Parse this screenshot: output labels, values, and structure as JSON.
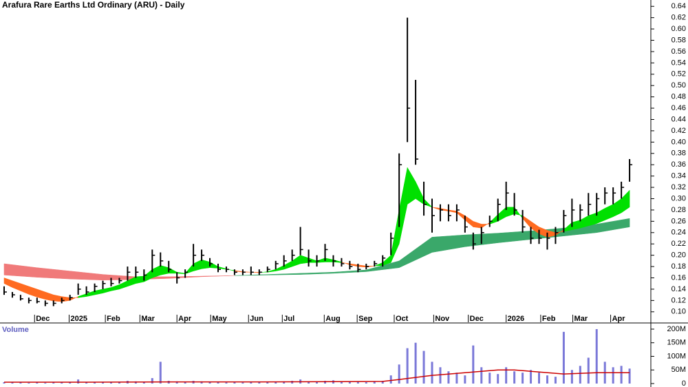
{
  "chart_data": {
    "type": "ohlc",
    "title": "Arafura Rare Earths Ltd Ordinary (ARU) - Daily",
    "color": "#000000",
    "x": [
      0,
      1,
      2,
      3,
      4,
      5,
      6,
      7,
      8,
      9,
      10,
      11,
      12,
      13,
      14,
      15,
      16,
      17,
      18,
      19,
      20,
      21,
      22,
      23,
      24,
      25,
      26,
      27,
      28,
      29,
      30,
      31,
      32,
      33,
      34,
      35,
      36,
      37,
      38,
      39,
      40,
      41,
      42,
      43,
      44,
      45,
      46,
      47,
      48,
      49,
      50,
      51,
      52,
      53,
      54,
      55,
      56,
      57,
      58,
      59,
      60,
      61,
      62,
      63,
      64,
      65,
      66,
      67,
      68,
      69,
      70,
      71,
      72,
      73,
      74,
      75,
      76
    ],
    "high": [
      0.145,
      0.135,
      0.13,
      0.125,
      0.125,
      0.12,
      0.12,
      0.125,
      0.13,
      0.15,
      0.145,
      0.15,
      0.155,
      0.16,
      0.16,
      0.18,
      0.18,
      0.175,
      0.21,
      0.205,
      0.19,
      0.17,
      0.175,
      0.22,
      0.21,
      0.195,
      0.185,
      0.18,
      0.175,
      0.175,
      0.18,
      0.175,
      0.18,
      0.19,
      0.2,
      0.21,
      0.25,
      0.21,
      0.2,
      0.22,
      0.2,
      0.195,
      0.19,
      0.185,
      0.185,
      0.19,
      0.2,
      0.24,
      0.38,
      0.62,
      0.51,
      0.33,
      0.3,
      0.29,
      0.29,
      0.29,
      0.27,
      0.24,
      0.25,
      0.27,
      0.3,
      0.33,
      0.31,
      0.28,
      0.25,
      0.245,
      0.24,
      0.25,
      0.28,
      0.3,
      0.29,
      0.31,
      0.31,
      0.32,
      0.32,
      0.33,
      0.37
    ],
    "low": [
      0.13,
      0.125,
      0.12,
      0.115,
      0.115,
      0.11,
      0.11,
      0.115,
      0.12,
      0.13,
      0.13,
      0.135,
      0.14,
      0.145,
      0.15,
      0.155,
      0.16,
      0.155,
      0.17,
      0.18,
      0.17,
      0.15,
      0.16,
      0.18,
      0.19,
      0.18,
      0.17,
      0.17,
      0.165,
      0.165,
      0.165,
      0.165,
      0.17,
      0.175,
      0.18,
      0.19,
      0.2,
      0.18,
      0.18,
      0.19,
      0.18,
      0.18,
      0.175,
      0.17,
      0.175,
      0.18,
      0.18,
      0.2,
      0.25,
      0.4,
      0.36,
      0.27,
      0.24,
      0.26,
      0.26,
      0.26,
      0.24,
      0.21,
      0.22,
      0.25,
      0.26,
      0.28,
      0.27,
      0.24,
      0.22,
      0.22,
      0.21,
      0.22,
      0.24,
      0.25,
      0.26,
      0.27,
      0.27,
      0.29,
      0.29,
      0.3,
      0.33
    ],
    "close": [
      0.135,
      0.13,
      0.123,
      0.12,
      0.118,
      0.115,
      0.115,
      0.12,
      0.125,
      0.14,
      0.135,
      0.145,
      0.15,
      0.15,
      0.155,
      0.17,
      0.17,
      0.165,
      0.2,
      0.19,
      0.175,
      0.16,
      0.17,
      0.2,
      0.2,
      0.185,
      0.175,
      0.175,
      0.17,
      0.17,
      0.17,
      0.17,
      0.175,
      0.185,
      0.19,
      0.2,
      0.21,
      0.19,
      0.19,
      0.21,
      0.19,
      0.185,
      0.18,
      0.175,
      0.18,
      0.185,
      0.195,
      0.23,
      0.36,
      0.46,
      0.37,
      0.29,
      0.27,
      0.28,
      0.27,
      0.28,
      0.25,
      0.22,
      0.24,
      0.26,
      0.29,
      0.31,
      0.28,
      0.25,
      0.23,
      0.23,
      0.23,
      0.24,
      0.27,
      0.28,
      0.28,
      0.29,
      0.3,
      0.31,
      0.31,
      0.32,
      0.36
    ],
    "xlim": [
      -0.5,
      78.5
    ],
    "xticks": [
      {
        "value": 3.7,
        "label": "Dec"
      },
      {
        "value": 7.9,
        "label": "2025"
      },
      {
        "value": 12.3,
        "label": "Feb"
      },
      {
        "value": 16.5,
        "label": "Mar"
      },
      {
        "value": 21,
        "label": "Apr"
      },
      {
        "value": 25.1,
        "label": "May"
      },
      {
        "value": 29.7,
        "label": "Jun"
      },
      {
        "value": 33.8,
        "label": "Jul"
      },
      {
        "value": 38.9,
        "label": "Aug"
      },
      {
        "value": 42.9,
        "label": "Sep"
      },
      {
        "value": 47.4,
        "label": "Oct"
      },
      {
        "value": 52.2,
        "label": "Nov"
      },
      {
        "value": 56.4,
        "label": "Dec"
      },
      {
        "value": 61,
        "label": "2026"
      },
      {
        "value": 65.2,
        "label": "Feb"
      },
      {
        "value": 69.1,
        "label": "Mar"
      },
      {
        "value": 73.7,
        "label": "Apr"
      }
    ],
    "ylim": [
      0.09,
      0.65
    ],
    "yticks": [
      {
        "value": 0.1,
        "label": "0.10"
      },
      {
        "value": 0.12,
        "label": "0.12"
      },
      {
        "value": 0.14,
        "label": "0.14"
      },
      {
        "value": 0.16,
        "label": "0.16"
      },
      {
        "value": 0.18,
        "label": "0.18"
      },
      {
        "value": 0.2,
        "label": "0.20"
      },
      {
        "value": 0.22,
        "label": "0.22"
      },
      {
        "value": 0.24,
        "label": "0.24"
      },
      {
        "value": 0.26,
        "label": "0.26"
      },
      {
        "value": 0.28,
        "label": "0.28"
      },
      {
        "value": 0.3,
        "label": "0.30"
      },
      {
        "value": 0.32,
        "label": "0.32"
      },
      {
        "value": 0.34,
        "label": "0.34"
      },
      {
        "value": 0.36,
        "label": "0.36"
      },
      {
        "value": 0.38,
        "label": "0.38"
      },
      {
        "value": 0.4,
        "label": "0.40"
      },
      {
        "value": 0.42,
        "label": "0.42"
      },
      {
        "value": 0.44,
        "label": "0.44"
      },
      {
        "value": 0.46,
        "label": "0.46"
      },
      {
        "value": 0.48,
        "label": "0.48"
      },
      {
        "value": 0.5,
        "label": "0.50"
      },
      {
        "value": 0.52,
        "label": "0.52"
      },
      {
        "value": 0.54,
        "label": "0.54"
      },
      {
        "value": 0.56,
        "label": "0.56"
      },
      {
        "value": 0.58,
        "label": "0.58"
      },
      {
        "value": 0.6,
        "label": "0.60"
      },
      {
        "value": 0.62,
        "label": "0.62"
      },
      {
        "value": 0.64,
        "label": "0.64"
      }
    ],
    "bands": [
      {
        "x": [
          0,
          4,
          8,
          12,
          16,
          20,
          24,
          28,
          32,
          36,
          40,
          44,
          48,
          52,
          56,
          60,
          64,
          68,
          72,
          76
        ],
        "fast": [
          0.165,
          0.161,
          0.158,
          0.156,
          0.157,
          0.159,
          0.162,
          0.164,
          0.166,
          0.168,
          0.17,
          0.174,
          0.19,
          0.232,
          0.236,
          0.239,
          0.243,
          0.248,
          0.255,
          0.265
        ],
        "slow": [
          0.185,
          0.178,
          0.172,
          0.166,
          0.162,
          0.162,
          0.163,
          0.164,
          0.165,
          0.166,
          0.168,
          0.171,
          0.178,
          0.205,
          0.215,
          0.222,
          0.228,
          0.234,
          0.24,
          0.25
        ],
        "up_color": "#3aa86a",
        "down_color": "#f07a7a"
      },
      {
        "x": [
          0,
          1,
          2,
          3,
          4,
          5,
          6,
          7,
          8,
          9,
          10,
          11,
          12,
          13,
          14,
          15,
          16,
          17,
          18,
          19,
          20,
          21,
          22,
          23,
          24,
          25,
          26,
          27,
          28,
          29,
          30,
          31,
          32,
          33,
          34,
          35,
          36,
          37,
          38,
          39,
          40,
          41,
          42,
          43,
          44,
          45,
          46,
          47,
          48,
          49,
          50,
          51,
          52,
          53,
          54,
          55,
          56,
          57,
          58,
          59,
          60,
          61,
          62,
          63,
          64,
          65,
          66,
          67,
          68,
          69,
          70,
          71,
          72,
          73,
          74,
          75,
          76
        ],
        "fast": [
          0.15,
          0.143,
          0.137,
          0.131,
          0.126,
          0.122,
          0.119,
          0.118,
          0.12,
          0.127,
          0.132,
          0.137,
          0.14,
          0.143,
          0.148,
          0.155,
          0.162,
          0.163,
          0.175,
          0.182,
          0.178,
          0.17,
          0.168,
          0.185,
          0.192,
          0.188,
          0.18,
          0.176,
          0.172,
          0.17,
          0.17,
          0.169,
          0.171,
          0.175,
          0.182,
          0.19,
          0.2,
          0.195,
          0.19,
          0.195,
          0.192,
          0.188,
          0.183,
          0.18,
          0.179,
          0.181,
          0.187,
          0.2,
          0.28,
          0.355,
          0.33,
          0.3,
          0.285,
          0.28,
          0.278,
          0.275,
          0.262,
          0.25,
          0.248,
          0.258,
          0.272,
          0.285,
          0.285,
          0.265,
          0.248,
          0.238,
          0.232,
          0.235,
          0.245,
          0.258,
          0.262,
          0.27,
          0.275,
          0.283,
          0.29,
          0.3,
          0.315
        ],
        "slow": [
          0.16,
          0.155,
          0.15,
          0.145,
          0.14,
          0.135,
          0.13,
          0.127,
          0.125,
          0.125,
          0.127,
          0.13,
          0.133,
          0.137,
          0.14,
          0.145,
          0.15,
          0.153,
          0.16,
          0.165,
          0.168,
          0.168,
          0.167,
          0.172,
          0.176,
          0.178,
          0.177,
          0.175,
          0.173,
          0.171,
          0.17,
          0.17,
          0.17,
          0.172,
          0.175,
          0.18,
          0.185,
          0.187,
          0.187,
          0.188,
          0.188,
          0.187,
          0.185,
          0.183,
          0.181,
          0.181,
          0.182,
          0.187,
          0.22,
          0.29,
          0.3,
          0.29,
          0.285,
          0.283,
          0.28,
          0.278,
          0.27,
          0.26,
          0.255,
          0.255,
          0.26,
          0.268,
          0.273,
          0.27,
          0.26,
          0.25,
          0.244,
          0.24,
          0.242,
          0.245,
          0.248,
          0.252,
          0.256,
          0.262,
          0.268,
          0.275,
          0.285
        ],
        "up_color": "#00e000",
        "down_color": "#ff6a20"
      }
    ],
    "volume": {
      "label": "Volume",
      "color": "#7a78d8",
      "values": [
        5,
        4,
        4,
        3,
        4,
        3,
        5,
        4,
        6,
        15,
        5,
        6,
        5,
        6,
        5,
        10,
        8,
        6,
        20,
        80,
        10,
        8,
        6,
        10,
        8,
        6,
        5,
        4,
        5,
        4,
        5,
        5,
        6,
        6,
        8,
        10,
        15,
        8,
        6,
        10,
        12,
        6,
        8,
        6,
        5,
        8,
        10,
        30,
        70,
        130,
        150,
        120,
        80,
        60,
        45,
        40,
        30,
        140,
        60,
        40,
        35,
        60,
        45,
        40,
        50,
        40,
        30,
        25,
        190,
        50,
        65,
        95,
        200,
        80,
        60,
        65,
        55
      ],
      "ylim": [
        0,
        210
      ],
      "yticks": [
        0,
        {
          "value": 50,
          "label": "50M"
        },
        {
          "value": 100,
          "label": "100M"
        },
        {
          "value": 150,
          "label": "150M"
        },
        {
          "value": 200,
          "label": "200M"
        }
      ],
      "ma": {
        "x": [
          0,
          10,
          20,
          30,
          40,
          46,
          48,
          52,
          56,
          60,
          62,
          64,
          68,
          72,
          76
        ],
        "values": [
          5,
          5,
          6,
          6,
          7,
          8,
          15,
          30,
          40,
          50,
          50,
          45,
          35,
          40,
          40
        ],
        "color": "#cc0000"
      }
    }
  }
}
